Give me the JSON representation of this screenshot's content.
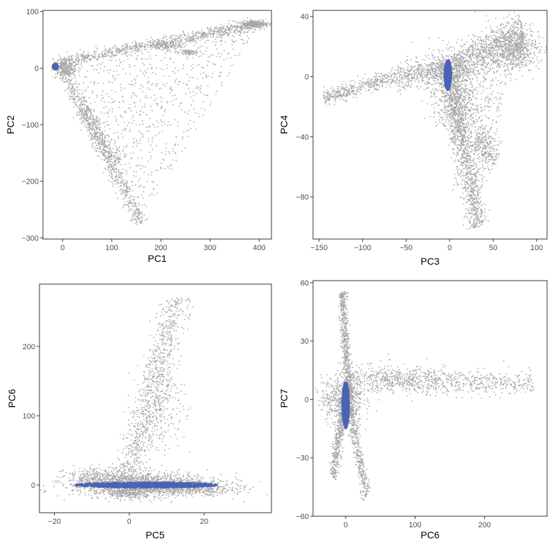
{
  "colors": {
    "background_points": "#a6a6a6",
    "highlight_points": "#4a63b5",
    "axis": "#333333",
    "tick_text": "#4d4d4d"
  },
  "chart_data": [
    {
      "type": "scatter",
      "title": "",
      "xlabel": "PC1",
      "ylabel": "PC2",
      "xlim": [
        -40,
        425
      ],
      "ylim": [
        -302,
        102
      ],
      "xticks": [
        0,
        100,
        200,
        300,
        400
      ],
      "yticks": [
        -300,
        -200,
        -100,
        0,
        100
      ],
      "grid": false,
      "series": [
        {
          "role": "background",
          "clusters": [
            {
              "shape": "segment",
              "from": [
                -5,
                10
              ],
              "to": [
                410,
                80
              ],
              "width": 5,
              "n": 900
            },
            {
              "shape": "segment",
              "from": [
                -5,
                5
              ],
              "to": [
                160,
                -275
              ],
              "width": 7,
              "n": 700
            },
            {
              "shape": "segment",
              "from": [
                40,
                -70
              ],
              "to": [
                110,
                -170
              ],
              "width": 10,
              "n": 300
            },
            {
              "shape": "triangle",
              "a": [
                0,
                5
              ],
              "b": [
                400,
                78
              ],
              "c": [
                160,
                -270
              ],
              "n": 700
            },
            {
              "shape": "blob",
              "center": [
                390,
                78
              ],
              "spread": [
                15,
                3
              ],
              "n": 250
            },
            {
              "shape": "blob",
              "center": [
                210,
                40
              ],
              "spread": [
                15,
                4
              ],
              "n": 120
            },
            {
              "shape": "blob",
              "center": [
                255,
                28
              ],
              "spread": [
                10,
                3
              ],
              "n": 80
            },
            {
              "shape": "blob",
              "center": [
                5,
                0
              ],
              "spread": [
                12,
                8
              ],
              "n": 250
            }
          ]
        },
        {
          "role": "highlight",
          "clusters": [
            {
              "shape": "ellipse",
              "center": [
                -15,
                3
              ],
              "radii": [
                5,
                5
              ],
              "n": 700
            }
          ]
        }
      ]
    },
    {
      "type": "scatter",
      "title": "",
      "xlabel": "PC3",
      "ylabel": "PC4",
      "xlim": [
        -157,
        112
      ],
      "ylim": [
        -108,
        44
      ],
      "xticks": [
        -150,
        -100,
        -50,
        0,
        50,
        100
      ],
      "yticks": [
        -80,
        -40,
        0,
        40
      ],
      "grid": false,
      "series": [
        {
          "role": "background",
          "clusters": [
            {
              "shape": "segment",
              "from": [
                -145,
                -14
              ],
              "to": [
                -60,
                0
              ],
              "width": 2.5,
              "n": 450
            },
            {
              "shape": "segment",
              "from": [
                -60,
                0
              ],
              "to": [
                0,
                5
              ],
              "width": 4,
              "n": 400
            },
            {
              "shape": "segment",
              "from": [
                0,
                5
              ],
              "to": [
                85,
                30
              ],
              "width": 6,
              "n": 900
            },
            {
              "shape": "segment",
              "from": [
                0,
                0
              ],
              "to": [
                33,
                -100
              ],
              "width": 6,
              "n": 1100
            },
            {
              "shape": "segment",
              "from": [
                30,
                -40
              ],
              "to": [
                55,
                -55
              ],
              "width": 6,
              "n": 250
            },
            {
              "shape": "blob",
              "center": [
                75,
                18
              ],
              "spread": [
                14,
                7
              ],
              "n": 600
            },
            {
              "shape": "blob",
              "center": [
                -5,
                0
              ],
              "spread": [
                18,
                10
              ],
              "n": 400
            },
            {
              "shape": "blob",
              "center": [
                10,
                -20
              ],
              "spread": [
                12,
                10
              ],
              "n": 350
            },
            {
              "shape": "triangle",
              "a": [
                -10,
                5
              ],
              "b": [
                80,
                20
              ],
              "c": [
                30,
                -90
              ],
              "n": 450
            }
          ]
        },
        {
          "role": "highlight",
          "clusters": [
            {
              "shape": "ellipse",
              "center": [
                -2,
                1
              ],
              "radii": [
                4,
                10
              ],
              "n": 700
            }
          ]
        }
      ]
    },
    {
      "type": "scatter",
      "title": "",
      "xlabel": "PC5",
      "ylabel": "PC6",
      "xlim": [
        -24,
        38
      ],
      "ylim": [
        -40,
        290
      ],
      "xticks": [
        -20,
        0,
        20
      ],
      "yticks": [
        0,
        100,
        200
      ],
      "grid": false,
      "series": [
        {
          "role": "background",
          "clusters": [
            {
              "shape": "blob",
              "center": [
                5,
                0
              ],
              "spread": [
                10,
                8
              ],
              "n": 1600
            },
            {
              "shape": "blob",
              "center": [
                -5,
                10
              ],
              "spread": [
                6,
                8
              ],
              "n": 450
            },
            {
              "shape": "segment",
              "from": [
                0,
                20
              ],
              "to": [
                13,
                270
              ],
              "width": 2,
              "n": 800
            },
            {
              "shape": "blob",
              "center": [
                0,
                -12
              ],
              "spread": [
                3,
                4
              ],
              "n": 250
            },
            {
              "shape": "blob",
              "center": [
                18,
                -8
              ],
              "spread": [
                6,
                4
              ],
              "n": 200
            },
            {
              "shape": "blob",
              "center": [
                9,
                120
              ],
              "spread": [
                3,
                35
              ],
              "n": 250
            }
          ]
        },
        {
          "role": "highlight",
          "clusters": [
            {
              "shape": "ellipse",
              "center": [
                4.5,
                0
              ],
              "radii": [
                19,
                4
              ],
              "n": 1100
            }
          ]
        }
      ]
    },
    {
      "type": "scatter",
      "title": "",
      "xlabel": "PC6",
      "ylabel": "PC7",
      "xlim": [
        -47,
        290
      ],
      "ylim": [
        -60,
        61
      ],
      "xticks": [
        0,
        100,
        200
      ],
      "yticks": [
        -60,
        -30,
        0,
        30,
        60
      ],
      "grid": false,
      "series": [
        {
          "role": "background",
          "clusters": [
            {
              "shape": "segment",
              "from": [
                -5,
                55
              ],
              "to": [
                5,
                0
              ],
              "width": 3,
              "n": 650
            },
            {
              "shape": "segment",
              "from": [
                -2,
                0
              ],
              "to": [
                -18,
                -40
              ],
              "width": 3,
              "n": 450
            },
            {
              "shape": "segment",
              "from": [
                5,
                0
              ],
              "to": [
                30,
                -50
              ],
              "width": 3,
              "n": 450
            },
            {
              "shape": "segment",
              "from": [
                5,
                10
              ],
              "to": [
                270,
                8
              ],
              "width": 3,
              "n": 650
            },
            {
              "shape": "blob",
              "center": [
                -5,
                0
              ],
              "spread": [
                15,
                6
              ],
              "n": 550
            },
            {
              "shape": "blob",
              "center": [
                80,
                10
              ],
              "spread": [
                45,
                4
              ],
              "n": 300
            }
          ]
        },
        {
          "role": "highlight",
          "clusters": [
            {
              "shape": "ellipse",
              "center": [
                0,
                -3
              ],
              "radii": [
                5,
                12
              ],
              "n": 700
            }
          ]
        }
      ]
    }
  ]
}
